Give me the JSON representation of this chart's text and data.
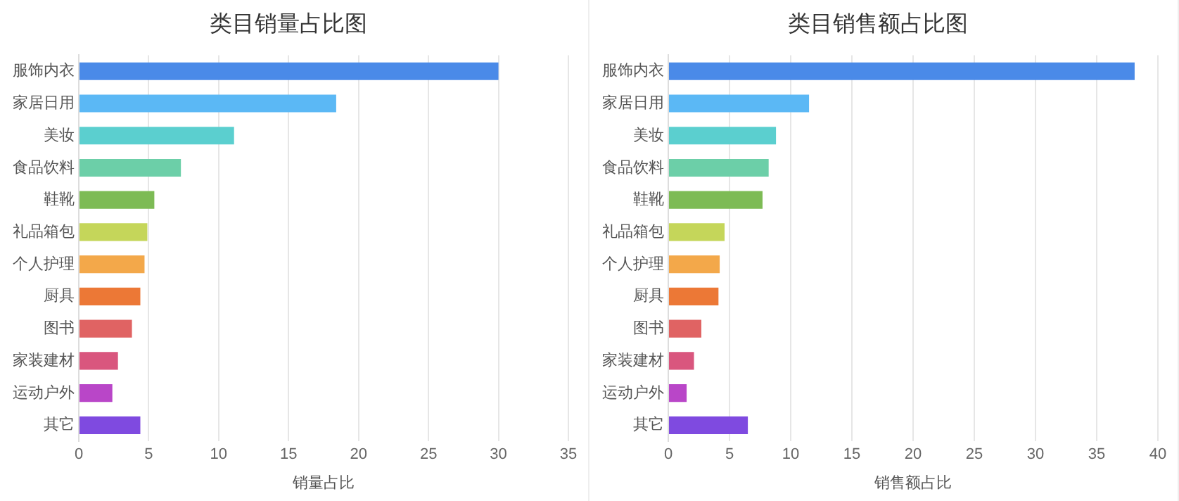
{
  "chart_data": [
    {
      "type": "bar",
      "orientation": "horizontal",
      "title": "类目销量占比图",
      "xlabel": "销量占比",
      "categories": [
        "服饰内衣",
        "家居日用",
        "美妆",
        "食品饮料",
        "鞋靴",
        "礼品箱包",
        "个人护理",
        "厨具",
        "图书",
        "家装建材",
        "运动户外",
        "其它"
      ],
      "values": [
        30.0,
        18.4,
        11.1,
        7.3,
        5.4,
        4.9,
        4.7,
        4.4,
        3.8,
        2.8,
        2.4,
        4.4
      ],
      "colors": [
        "#4a8ae8",
        "#5bb8f5",
        "#5bcfcf",
        "#6ccfa8",
        "#7dbb55",
        "#c5d65a",
        "#f3a84a",
        "#ec7836",
        "#e06363",
        "#d9567e",
        "#b946c8",
        "#7f4ae0"
      ],
      "xlim": [
        0,
        35
      ],
      "xticks": [
        0,
        5,
        10,
        15,
        20,
        25,
        30,
        35
      ],
      "grid": "x",
      "legend": false
    },
    {
      "type": "bar",
      "orientation": "horizontal",
      "title": "类目销售额占比图",
      "xlabel": "销售额占比",
      "categories": [
        "服饰内衣",
        "家居日用",
        "美妆",
        "食品饮料",
        "鞋靴",
        "礼品箱包",
        "个人护理",
        "厨具",
        "图书",
        "家装建材",
        "运动户外",
        "其它"
      ],
      "values": [
        38.1,
        11.5,
        8.8,
        8.2,
        7.7,
        4.6,
        4.2,
        4.1,
        2.7,
        2.1,
        1.5,
        6.5
      ],
      "colors": [
        "#4a8ae8",
        "#5bb8f5",
        "#5bcfcf",
        "#6ccfa8",
        "#7dbb55",
        "#c5d65a",
        "#f3a84a",
        "#ec7836",
        "#e06363",
        "#d9567e",
        "#b946c8",
        "#7f4ae0"
      ],
      "xlim": [
        0,
        40
      ],
      "xticks": [
        0,
        5,
        10,
        15,
        20,
        25,
        30,
        35,
        40
      ],
      "grid": "x",
      "legend": false
    }
  ]
}
